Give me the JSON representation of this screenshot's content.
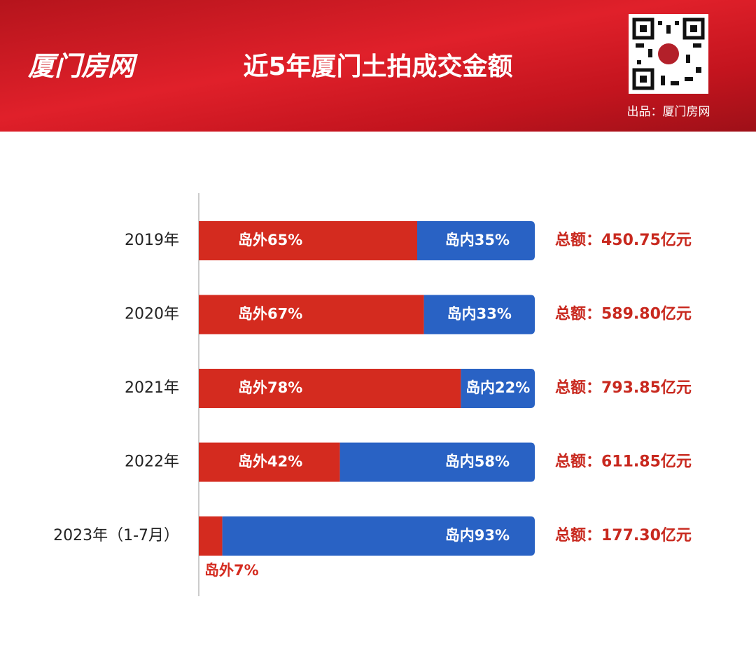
{
  "header": {
    "logo": "厦门房网",
    "credit": "出品：厦门房网"
  },
  "chart_data": {
    "type": "bar",
    "orientation": "horizontal",
    "stacked": true,
    "title": "近5年厦门土拍成交金额",
    "categories": [
      "2019年",
      "2020年",
      "2021年",
      "2022年",
      "2023年（1-7月）"
    ],
    "xlim": [
      0,
      100
    ],
    "series": [
      {
        "name": "岛外",
        "color": "#d42b1f",
        "values": [
          65,
          67,
          78,
          42,
          7
        ],
        "value_labels": [
          "岛外65%",
          "岛外67%",
          "岛外78%",
          "岛外42%",
          "岛外7%"
        ]
      },
      {
        "name": "岛内",
        "color": "#2962c4",
        "values": [
          35,
          33,
          22,
          58,
          93
        ],
        "value_labels": [
          "岛内35%",
          "岛内33%",
          "岛内22%",
          "岛内58%",
          "岛内93%"
        ]
      }
    ],
    "total_labels": [
      "总额：450.75亿元",
      "总额：589.80亿元",
      "总额：793.85亿元",
      "总额：611.85亿元",
      "总额：177.30亿元"
    ]
  }
}
